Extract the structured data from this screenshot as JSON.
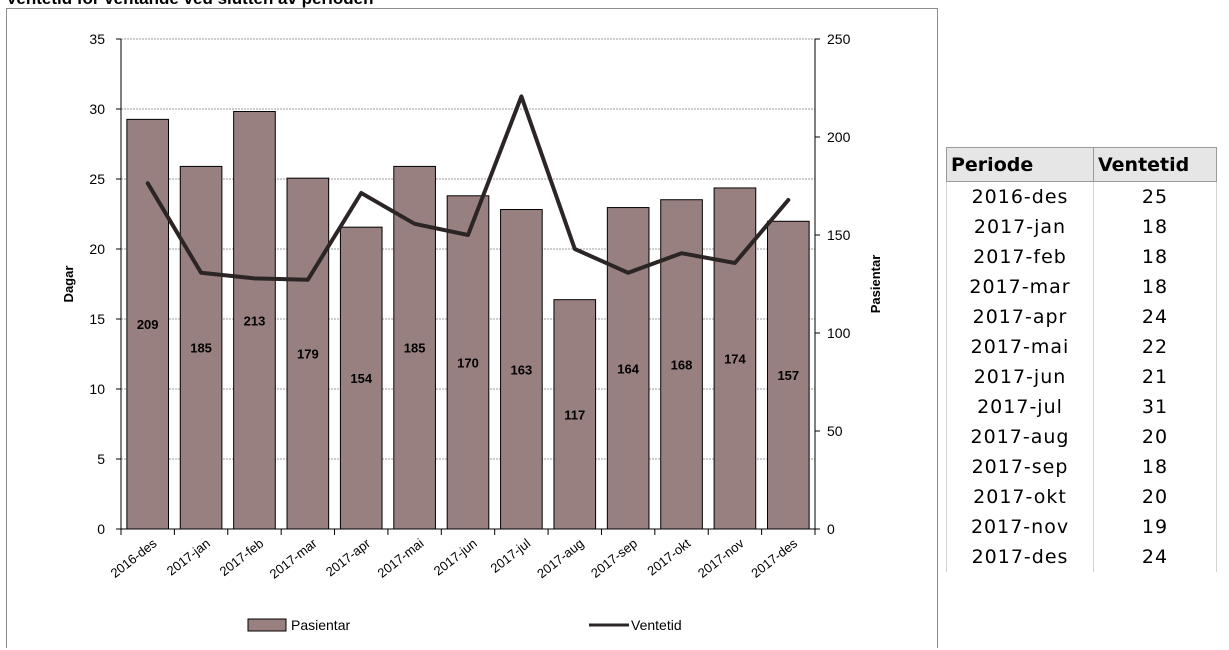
{
  "title": "Ventetid for ventande ved slutten av perioden",
  "chart_data": {
    "type": "bar+line",
    "categories": [
      "2016-des",
      "2017-jan",
      "2017-feb",
      "2017-mar",
      "2017-apr",
      "2017-mai",
      "2017-jun",
      "2017-jul",
      "2017-aug",
      "2017-sep",
      "2017-okt",
      "2017-nov",
      "2017-des"
    ],
    "series": [
      {
        "name": "Pasientar",
        "type": "bar",
        "axis": "right",
        "values": [
          209,
          185,
          213,
          179,
          154,
          185,
          170,
          163,
          117,
          164,
          168,
          174,
          157
        ]
      },
      {
        "name": "Ventetid",
        "type": "line",
        "axis": "left",
        "values": [
          24.7,
          18.3,
          17.9,
          17.8,
          24.0,
          21.8,
          21.0,
          30.9,
          20.0,
          18.3,
          19.7,
          19.0,
          23.5
        ]
      }
    ],
    "ylabel_left": "Dagar",
    "ylabel_right": "Pasientar",
    "ylim_left": [
      0,
      35
    ],
    "yticks_left": [
      0,
      5,
      10,
      15,
      20,
      25,
      30,
      35
    ],
    "ylim_right": [
      0,
      250
    ],
    "yticks_right": [
      0,
      50,
      100,
      150,
      200,
      250
    ],
    "grid": true,
    "legend_position": "bottom",
    "colors": {
      "bar_fill": "#988080",
      "bar_stroke": "#000000",
      "line": "#2b2525",
      "grid": "#7f7f7f"
    }
  },
  "table": {
    "headers": [
      "Periode",
      "Ventetid"
    ],
    "rows": [
      [
        "2016-des",
        "25"
      ],
      [
        "2017-jan",
        "18"
      ],
      [
        "2017-feb",
        "18"
      ],
      [
        "2017-mar",
        "18"
      ],
      [
        "2017-apr",
        "24"
      ],
      [
        "2017-mai",
        "22"
      ],
      [
        "2017-jun",
        "21"
      ],
      [
        "2017-jul",
        "31"
      ],
      [
        "2017-aug",
        "20"
      ],
      [
        "2017-sep",
        "18"
      ],
      [
        "2017-okt",
        "20"
      ],
      [
        "2017-nov",
        "19"
      ],
      [
        "2017-des",
        "24"
      ]
    ]
  }
}
